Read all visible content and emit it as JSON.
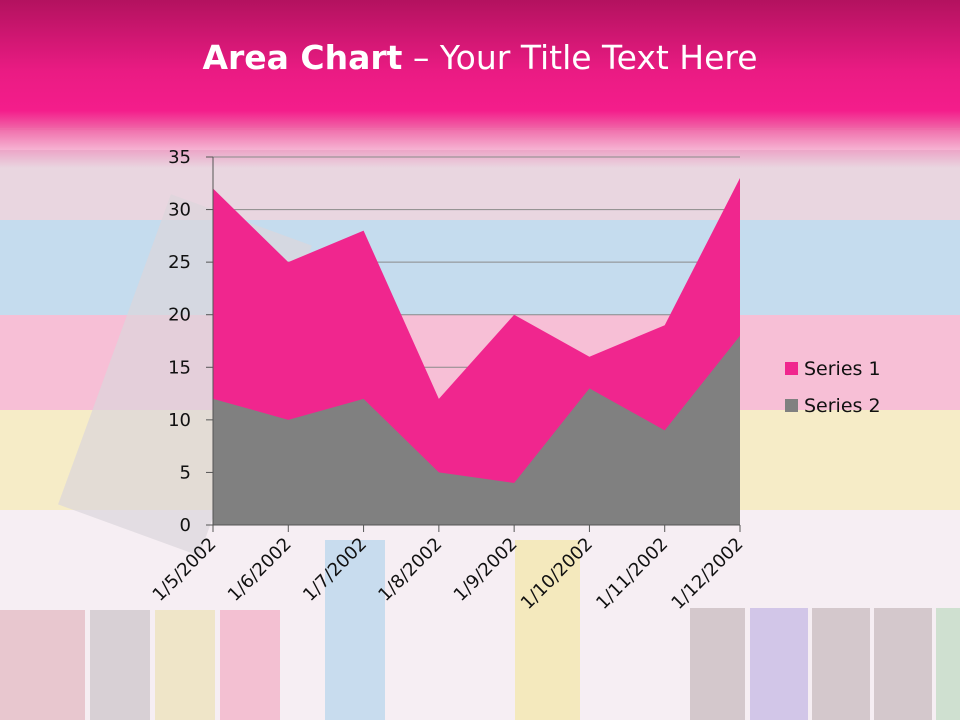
{
  "slide": {
    "title_bold": "Area Chart",
    "title_rest": " – Your Title Text Here"
  },
  "colors": {
    "header": "#ea1b83",
    "series1": "#f0268e",
    "series2": "#808080"
  },
  "chart_data": {
    "type": "area",
    "categories": [
      "1/5/2002",
      "1/6/2002",
      "1/7/2002",
      "1/8/2002",
      "1/9/2002",
      "1/10/2002",
      "1/11/2002",
      "1/12/2002"
    ],
    "series": [
      {
        "name": "Series 1",
        "values": [
          32,
          25,
          28,
          12,
          20,
          16,
          19,
          33
        ]
      },
      {
        "name": "Series 2",
        "values": [
          12,
          10,
          12,
          5,
          4,
          13,
          9,
          18
        ]
      }
    ],
    "yticks": [
      "0",
      "5",
      "10",
      "15",
      "20",
      "25",
      "30",
      "35"
    ],
    "ylim": [
      0,
      35
    ],
    "grid": true,
    "legend": "right"
  }
}
